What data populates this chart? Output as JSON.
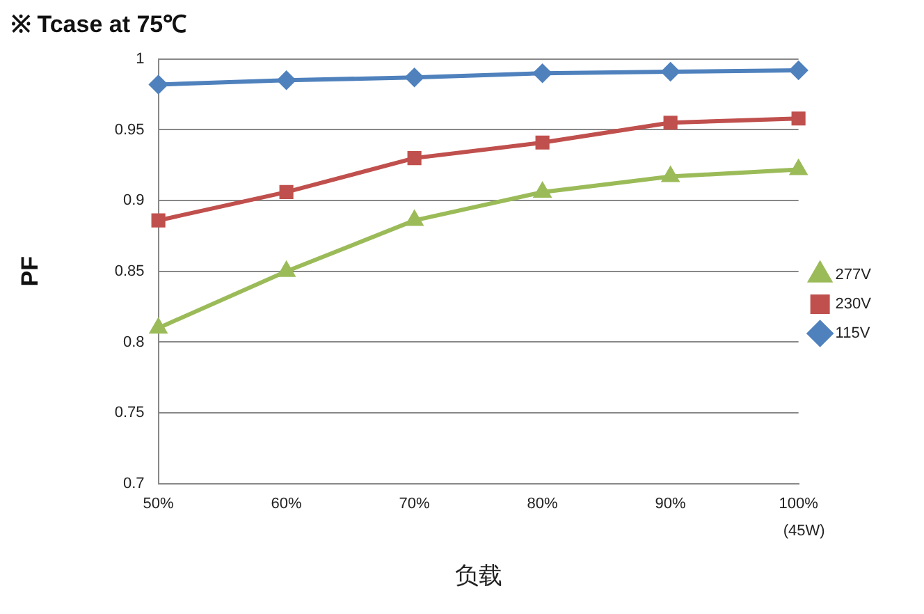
{
  "chart_data": {
    "type": "line",
    "title": "※ Tcase at 75℃",
    "xlabel": "负载",
    "ylabel": "PF",
    "categories": [
      "50%",
      "60%",
      "70%",
      "80%",
      "90%",
      "100%"
    ],
    "series": [
      {
        "name": "277V",
        "color": "#9bbb59",
        "marker": "triangle",
        "values": [
          0.81,
          0.85,
          0.886,
          0.906,
          0.917,
          0.922
        ]
      },
      {
        "name": "230V",
        "color": "#c0504d",
        "marker": "square",
        "values": [
          0.886,
          0.906,
          0.93,
          0.941,
          0.955,
          0.958
        ]
      },
      {
        "name": "115V",
        "color": "#4f81bd",
        "marker": "diamond",
        "values": [
          0.982,
          0.985,
          0.987,
          0.99,
          0.991,
          0.992
        ]
      }
    ],
    "ylim": [
      0.7,
      1
    ],
    "yticks": [
      0.7,
      0.75,
      0.8,
      0.85,
      0.9,
      0.95,
      1
    ],
    "grid": "y",
    "legend": "right",
    "annotations": [
      "(45W)"
    ]
  }
}
